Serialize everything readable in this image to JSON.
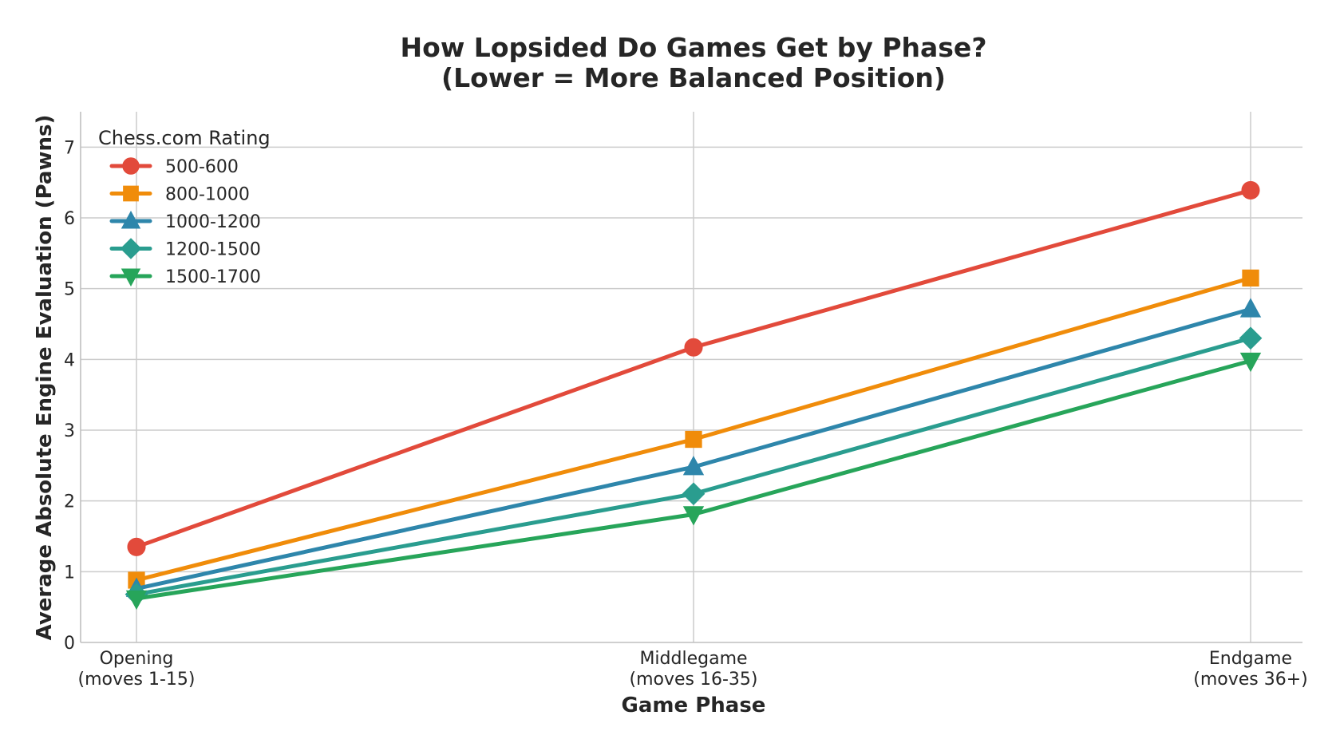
{
  "chart_data": {
    "type": "line",
    "title_lines": [
      "How Lopsided Do Games Get by Phase?",
      "(Lower = More Balanced Position)"
    ],
    "xlabel": "Game Phase",
    "ylabel": "Average Absolute Engine Evaluation (Pawns)",
    "categories": [
      [
        "Opening",
        "(moves 1-15)"
      ],
      [
        "Middlegame",
        "(moves 16-35)"
      ],
      [
        "Endgame",
        "(moves 36+)"
      ]
    ],
    "ylim": [
      0,
      7.5
    ],
    "yticks": [
      0,
      1,
      2,
      3,
      4,
      5,
      6,
      7
    ],
    "grid": true,
    "legend": {
      "title": "Chess.com Rating",
      "placement": "top-left"
    },
    "series": [
      {
        "name": "500-600",
        "color": "#e24a3b",
        "marker": "circle",
        "values": [
          1.35,
          4.17,
          6.39
        ]
      },
      {
        "name": "800-1000",
        "color": "#f08c0a",
        "marker": "square",
        "values": [
          0.88,
          2.87,
          5.15
        ]
      },
      {
        "name": "1000-1200",
        "color": "#2e86ab",
        "marker": "triangle-up",
        "values": [
          0.76,
          2.48,
          4.71
        ]
      },
      {
        "name": "1200-1500",
        "color": "#2a9d8f",
        "marker": "diamond",
        "values": [
          0.68,
          2.1,
          4.3
        ]
      },
      {
        "name": "1500-1700",
        "color": "#27a55a",
        "marker": "triangle-down",
        "values": [
          0.62,
          1.81,
          3.98
        ]
      }
    ]
  }
}
